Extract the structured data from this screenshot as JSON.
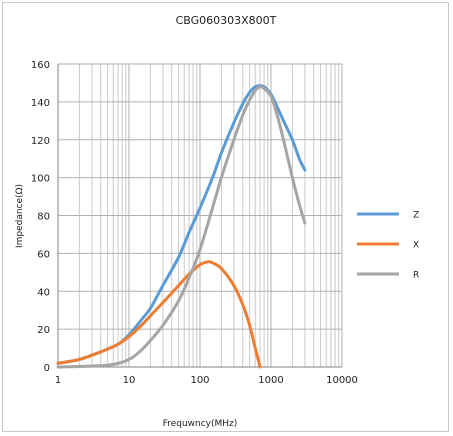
{
  "chart_data": {
    "type": "line",
    "title": "CBG060303X800T",
    "xlabel": "Frequwncy(MHz)",
    "ylabel": "Impedance(Ω)",
    "xscale": "log",
    "xlim": [
      1,
      10000
    ],
    "ylim": [
      0,
      160
    ],
    "x_ticks": [
      "1",
      "10",
      "100",
      "1000",
      "10000"
    ],
    "y_ticks": [
      "0",
      "20",
      "40",
      "60",
      "80",
      "100",
      "120",
      "140",
      "160"
    ],
    "grid": true,
    "legend": "right",
    "series": [
      {
        "name": "Z",
        "color": "#5b9bd5",
        "x": [
          1,
          2,
          4,
          7,
          10,
          15,
          20,
          30,
          50,
          70,
          100,
          150,
          200,
          300,
          400,
          500,
          600,
          700,
          800,
          1000,
          1200,
          1500,
          2000,
          2500,
          3000
        ],
        "y": [
          2,
          4,
          8,
          12,
          17,
          25,
          31,
          43,
          58,
          71,
          84,
          100,
          113,
          129,
          139,
          145,
          148,
          148.5,
          148,
          144,
          138,
          130,
          120,
          110,
          104
        ]
      },
      {
        "name": "X",
        "color": "#ed7d31",
        "x": [
          1,
          2,
          4,
          7,
          10,
          15,
          20,
          30,
          50,
          70,
          100,
          130,
          150,
          200,
          300,
          400,
          500,
          600,
          700
        ],
        "y": [
          2,
          4,
          8,
          12,
          16,
          22,
          27,
          34,
          43,
          49,
          54,
          55.5,
          55,
          52,
          43,
          33,
          22,
          10,
          0
        ]
      },
      {
        "name": "R",
        "color": "#a5a5a5",
        "x": [
          1,
          5,
          10,
          15,
          20,
          30,
          50,
          70,
          100,
          150,
          200,
          300,
          400,
          500,
          600,
          700,
          800,
          1000,
          1200,
          1500,
          2000,
          2500,
          3000
        ],
        "y": [
          0,
          1,
          4,
          9,
          14,
          22,
          35,
          47,
          62,
          84,
          100,
          120,
          133,
          141,
          146,
          148,
          147,
          143,
          134,
          120,
          100,
          86,
          76
        ]
      }
    ]
  }
}
